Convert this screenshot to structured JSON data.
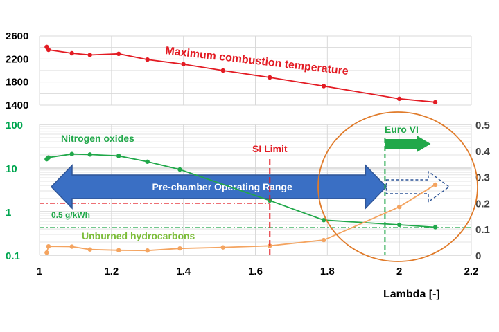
{
  "chart_data": [
    {
      "type": "line",
      "title": "",
      "xlabel": "",
      "ylabel": "",
      "xlim": [
        1,
        2.2
      ],
      "ylim": [
        1400,
        2600
      ],
      "yticks": [
        1400,
        1800,
        2200,
        2600
      ],
      "grid": true,
      "series": [
        {
          "name": "Maximum combustion temperature",
          "color": "#e31b23",
          "x": [
            1.02,
            1.025,
            1.09,
            1.14,
            1.22,
            1.3,
            1.4,
            1.51,
            1.64,
            1.79,
            2.0,
            2.1
          ],
          "y": [
            2410,
            2360,
            2300,
            2270,
            2290,
            2190,
            2110,
            2000,
            1880,
            1730,
            1510,
            1450
          ]
        }
      ]
    },
    {
      "type": "line",
      "title": "",
      "xlabel": "Lambda [-]",
      "ylabel": "",
      "xlim": [
        1,
        2.2
      ],
      "xticks": [
        1,
        1.2,
        1.4,
        1.6,
        1.8,
        2,
        2.2
      ],
      "xtick_labels": [
        "1",
        "1.2",
        "1.4",
        "1.6",
        "1.8",
        "2",
        "2.2"
      ],
      "y_left": {
        "scale": "log",
        "lim": [
          0.1,
          100
        ],
        "ticks": [
          0.1,
          1,
          10,
          100
        ],
        "tick_labels": [
          "0.1",
          "1",
          "10",
          "100"
        ],
        "color": "#00a650"
      },
      "y_right": {
        "scale": "linear",
        "lim": [
          0,
          0.5
        ],
        "ticks": [
          0,
          0.1,
          0.2,
          0.3,
          0.4,
          0.5
        ],
        "tick_labels": [
          "0",
          "0.1",
          "0.2",
          "0.3",
          "0.4",
          "0.5"
        ],
        "color": "#404040"
      },
      "grid": true,
      "series": [
        {
          "name": "Nitrogen oxides",
          "axis": "left",
          "color": "#21a84a",
          "x": [
            1.02,
            1.025,
            1.09,
            1.14,
            1.22,
            1.3,
            1.39,
            1.64,
            1.79,
            2.0,
            2.1
          ],
          "y": [
            16,
            17.5,
            21,
            20.5,
            19,
            14,
            9.3,
            1.8,
            0.64,
            0.5,
            0.44
          ]
        },
        {
          "name": "Unburned hydrocarbons",
          "axis": "right",
          "color": "#f4a460",
          "x": [
            1.02,
            1.025,
            1.09,
            1.14,
            1.22,
            1.3,
            1.39,
            1.51,
            1.64,
            1.79,
            2.0,
            2.1
          ],
          "y": [
            0.01,
            0.034,
            0.033,
            0.022,
            0.019,
            0.018,
            0.026,
            0.03,
            0.036,
            0.058,
            0.185,
            0.27
          ]
        }
      ],
      "annotations": {
        "nox_label": "Nitrogen oxides",
        "hc_label": "Unburned hydrocarbons",
        "temp_label": "Maximum combustion temperature",
        "si_limit": "SI Limit",
        "si_limit_x": 1.64,
        "euro_vi": "Euro VI",
        "euro_vi_x": 1.96,
        "operating_range": "Pre-chamber Operating Range",
        "operating_range_x": [
          1.0,
          1.96
        ],
        "reference_nox": "0.5 g/kWh",
        "reference_nox_value": 0.5,
        "reference_hc_value": 1.55
      }
    }
  ]
}
